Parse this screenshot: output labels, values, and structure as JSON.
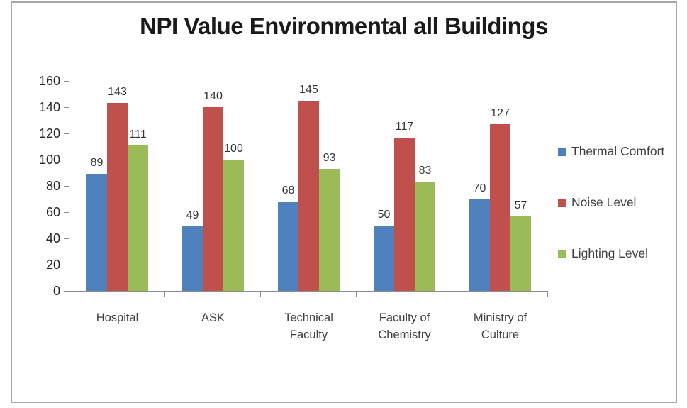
{
  "chart_data": {
    "type": "bar",
    "title": "NPI Value Environmental all Buildings",
    "categories": [
      "Hospital",
      "ASK",
      "Technical Faculty",
      "Faculty of Chemistry",
      "Ministry of Culture"
    ],
    "series": [
      {
        "name": "Thermal Comfort",
        "color": "#4f81bd",
        "values": [
          89,
          49,
          68,
          50,
          70
        ]
      },
      {
        "name": "Noise Level",
        "color": "#c0504d",
        "values": [
          143,
          140,
          145,
          117,
          127
        ]
      },
      {
        "name": "Lighting Level",
        "color": "#9bbb59",
        "values": [
          111,
          100,
          93,
          83,
          57
        ]
      }
    ],
    "xlabel": "",
    "ylabel": "",
    "ylim": [
      0,
      160
    ],
    "ytick_step": 20,
    "ytick_labels": [
      "0",
      "20",
      "40",
      "60",
      "80",
      "100",
      "120",
      "140",
      "160"
    ],
    "grid": false,
    "data_labels": true,
    "legend_position": "right"
  },
  "colors": {
    "axis_line": "#8c8c8c",
    "frame_border": "#a6a6a6",
    "tick_text": "#262626",
    "label_text": "#404040",
    "title_text": "#1a1a1a",
    "background": "#ffffff"
  }
}
